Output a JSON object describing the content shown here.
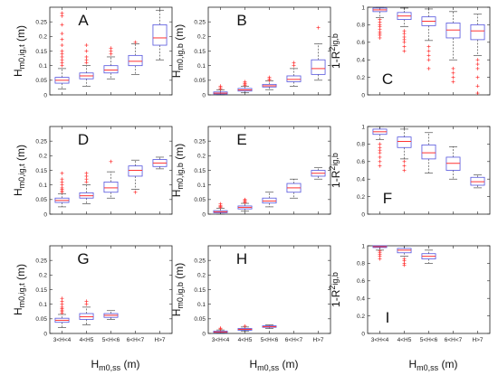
{
  "figure": {
    "x_axis_label": "H_m0,ss (m)",
    "colors": {
      "box": "#5555dd",
      "median": "#ff3333",
      "whisker": "#333333",
      "outlier": "#ff3333",
      "axes": "#222222"
    }
  },
  "chart_data": [
    {
      "panel_label": "A",
      "type": "box",
      "ylabel": "H_m0,ig,t (m)",
      "ylim": [
        0,
        0.3
      ],
      "yticks": [
        0,
        0.05,
        0.1,
        0.15,
        0.2,
        0.25
      ],
      "categories": [
        "3<H<4",
        "4<H5",
        "5<H<6",
        "6<H<7",
        "H>7"
      ],
      "show_xticklabels": false,
      "boxes": [
        {
          "whislo": 0.02,
          "q1": 0.04,
          "med": 0.05,
          "q3": 0.06,
          "whishi": 0.09,
          "fliers": [
            0.1,
            0.11,
            0.12,
            0.13,
            0.14,
            0.15,
            0.17,
            0.19,
            0.21,
            0.24,
            0.27,
            0.28
          ]
        },
        {
          "whislo": 0.03,
          "q1": 0.055,
          "med": 0.065,
          "q3": 0.075,
          "whishi": 0.1,
          "fliers": [
            0.11,
            0.12,
            0.13,
            0.15,
            0.17
          ]
        },
        {
          "whislo": 0.055,
          "q1": 0.075,
          "med": 0.085,
          "q3": 0.1,
          "whishi": 0.13,
          "fliers": [
            0.14,
            0.15,
            0.16
          ]
        },
        {
          "whislo": 0.07,
          "q1": 0.1,
          "med": 0.115,
          "q3": 0.135,
          "whishi": 0.175,
          "fliers": [
            0.18
          ]
        },
        {
          "whislo": 0.12,
          "q1": 0.17,
          "med": 0.195,
          "q3": 0.24,
          "whishi": 0.29,
          "fliers": []
        }
      ]
    },
    {
      "panel_label": "B",
      "type": "box",
      "ylabel": "H_m0,ig,b (m)",
      "ylim": [
        0,
        0.3
      ],
      "yticks": [
        0,
        0.05,
        0.1,
        0.15,
        0.2,
        0.25
      ],
      "categories": [
        "3<H<4",
        "4<H5",
        "5<H<6",
        "6<H<7",
        "H>7"
      ],
      "show_xticklabels": false,
      "boxes": [
        {
          "whislo": 0.0,
          "q1": 0.003,
          "med": 0.006,
          "q3": 0.01,
          "whishi": 0.017,
          "fliers": [
            0.02,
            0.025,
            0.03
          ]
        },
        {
          "whislo": 0.007,
          "q1": 0.013,
          "med": 0.017,
          "q3": 0.022,
          "whishi": 0.03,
          "fliers": [
            0.033,
            0.037,
            0.04,
            0.045
          ]
        },
        {
          "whislo": 0.018,
          "q1": 0.027,
          "med": 0.031,
          "q3": 0.036,
          "whishi": 0.048,
          "fliers": [
            0.05,
            0.055,
            0.06
          ]
        },
        {
          "whislo": 0.03,
          "q1": 0.045,
          "med": 0.053,
          "q3": 0.065,
          "whishi": 0.09,
          "fliers": [
            0.1,
            0.11
          ]
        },
        {
          "whislo": 0.05,
          "q1": 0.07,
          "med": 0.09,
          "q3": 0.12,
          "whishi": 0.175,
          "fliers": [
            0.23
          ]
        }
      ]
    },
    {
      "panel_label": "C",
      "type": "box",
      "ylabel": "1-R^2_ig,b",
      "ylim": [
        0,
        1
      ],
      "yticks": [
        0,
        0.2,
        0.4,
        0.6,
        0.8,
        1
      ],
      "categories": [
        "3<H<4",
        "4<H5",
        "5<H<6",
        "6<H<7",
        "H>7"
      ],
      "show_xticklabels": false,
      "boxes": [
        {
          "whislo": 0.88,
          "q1": 0.95,
          "med": 0.97,
          "q3": 0.99,
          "whishi": 1.0,
          "fliers": [
            0.65,
            0.68,
            0.7,
            0.72,
            0.75,
            0.78,
            0.8,
            0.83,
            0.86
          ]
        },
        {
          "whislo": 0.78,
          "q1": 0.86,
          "med": 0.9,
          "q3": 0.94,
          "whishi": 0.99,
          "fliers": [
            0.5,
            0.55,
            0.6,
            0.63,
            0.66,
            0.7,
            0.73
          ]
        },
        {
          "whislo": 0.62,
          "q1": 0.79,
          "med": 0.84,
          "q3": 0.89,
          "whishi": 0.98,
          "fliers": [
            0.3,
            0.4,
            0.45,
            0.5,
            0.55
          ]
        },
        {
          "whislo": 0.4,
          "q1": 0.65,
          "med": 0.74,
          "q3": 0.82,
          "whishi": 0.95,
          "fliers": [
            0.15,
            0.2,
            0.25,
            0.3
          ]
        },
        {
          "whislo": 0.45,
          "q1": 0.63,
          "med": 0.73,
          "q3": 0.8,
          "whishi": 0.92,
          "fliers": [
            0.02,
            0.1,
            0.2,
            0.3,
            0.35,
            0.4
          ]
        }
      ]
    },
    {
      "panel_label": "D",
      "type": "box",
      "ylabel": "H_m0,ig,t (m)",
      "ylim": [
        0,
        0.3
      ],
      "yticks": [
        0,
        0.05,
        0.1,
        0.15,
        0.2,
        0.25
      ],
      "categories": [
        "3<H<4",
        "4<H5",
        "5<H<6",
        "6<H<7",
        "H>7"
      ],
      "show_xticklabels": false,
      "boxes": [
        {
          "whislo": 0.025,
          "q1": 0.04,
          "med": 0.047,
          "q3": 0.055,
          "whishi": 0.07,
          "fliers": [
            0.075,
            0.08,
            0.085,
            0.09,
            0.1,
            0.11,
            0.12,
            0.14
          ]
        },
        {
          "whislo": 0.035,
          "q1": 0.055,
          "med": 0.063,
          "q3": 0.073,
          "whishi": 0.1,
          "fliers": [
            0.11,
            0.12,
            0.13,
            0.14
          ]
        },
        {
          "whislo": 0.055,
          "q1": 0.075,
          "med": 0.09,
          "q3": 0.11,
          "whishi": 0.145,
          "fliers": [
            0.18
          ]
        },
        {
          "whislo": 0.085,
          "q1": 0.13,
          "med": 0.15,
          "q3": 0.165,
          "whishi": 0.185,
          "fliers": [
            0.075
          ]
        },
        {
          "whislo": 0.155,
          "q1": 0.163,
          "med": 0.175,
          "q3": 0.187,
          "whishi": 0.195,
          "fliers": []
        }
      ]
    },
    {
      "panel_label": "E",
      "type": "box",
      "ylabel": "H_m0,ig,b (m)",
      "ylim": [
        0,
        0.3
      ],
      "yticks": [
        0,
        0.05,
        0.1,
        0.15,
        0.2,
        0.25
      ],
      "categories": [
        "3<H<4",
        "4<H5",
        "5<H<6",
        "6<H<7",
        "H>7"
      ],
      "show_xticklabels": false,
      "boxes": [
        {
          "whislo": 0.0,
          "q1": 0.005,
          "med": 0.008,
          "q3": 0.012,
          "whishi": 0.02,
          "fliers": [
            0.023,
            0.026,
            0.03,
            0.035
          ]
        },
        {
          "whislo": 0.01,
          "q1": 0.018,
          "med": 0.023,
          "q3": 0.028,
          "whishi": 0.037,
          "fliers": [
            0.04,
            0.043,
            0.047,
            0.05
          ]
        },
        {
          "whislo": 0.025,
          "q1": 0.038,
          "med": 0.045,
          "q3": 0.055,
          "whishi": 0.075,
          "fliers": []
        },
        {
          "whislo": 0.055,
          "q1": 0.075,
          "med": 0.09,
          "q3": 0.105,
          "whishi": 0.12,
          "fliers": []
        },
        {
          "whislo": 0.12,
          "q1": 0.13,
          "med": 0.14,
          "q3": 0.15,
          "whishi": 0.16,
          "fliers": []
        }
      ]
    },
    {
      "panel_label": "F",
      "type": "box",
      "ylabel": "1-R^2_ig,b",
      "ylim": [
        0,
        1
      ],
      "yticks": [
        0,
        0.2,
        0.4,
        0.6,
        0.8,
        1
      ],
      "categories": [
        "3<H<4",
        "4<H5",
        "5<H<6",
        "6<H<7",
        "H>7"
      ],
      "show_xticklabels": false,
      "boxes": [
        {
          "whislo": 0.85,
          "q1": 0.91,
          "med": 0.94,
          "q3": 0.97,
          "whishi": 1.0,
          "fliers": [
            0.55,
            0.6,
            0.65,
            0.7,
            0.73,
            0.76,
            0.8
          ]
        },
        {
          "whislo": 0.63,
          "q1": 0.76,
          "med": 0.83,
          "q3": 0.88,
          "whishi": 0.97,
          "fliers": [
            0.5,
            0.55,
            0.6
          ]
        },
        {
          "whislo": 0.47,
          "q1": 0.63,
          "med": 0.7,
          "q3": 0.79,
          "whishi": 0.93,
          "fliers": []
        },
        {
          "whislo": 0.4,
          "q1": 0.5,
          "med": 0.58,
          "q3": 0.65,
          "whishi": 0.77,
          "fliers": []
        },
        {
          "whislo": 0.3,
          "q1": 0.33,
          "med": 0.37,
          "q3": 0.42,
          "whishi": 0.45,
          "fliers": []
        }
      ]
    },
    {
      "panel_label": "G",
      "type": "box",
      "ylabel": "H_m0,ig,t (m)",
      "ylim": [
        0,
        0.3
      ],
      "yticks": [
        0,
        0.05,
        0.1,
        0.15,
        0.2,
        0.25
      ],
      "categories": [
        "3<H<4",
        "4<H5",
        "5<H<6",
        "6<H<7",
        "H>7"
      ],
      "show_xticklabels": true,
      "boxes": [
        {
          "whislo": 0.02,
          "q1": 0.038,
          "med": 0.045,
          "q3": 0.052,
          "whishi": 0.065,
          "fliers": [
            0.07,
            0.075,
            0.08,
            0.085,
            0.09,
            0.1,
            0.11,
            0.12
          ]
        },
        {
          "whislo": 0.03,
          "q1": 0.048,
          "med": 0.057,
          "q3": 0.068,
          "whishi": 0.09,
          "fliers": [
            0.1,
            0.11
          ]
        },
        {
          "whislo": 0.048,
          "q1": 0.055,
          "med": 0.062,
          "q3": 0.068,
          "whishi": 0.078,
          "fliers": []
        },
        null,
        null
      ]
    },
    {
      "panel_label": "H",
      "type": "box",
      "ylabel": "H_m0,ig,b (m)",
      "ylim": [
        0,
        0.3
      ],
      "yticks": [
        0,
        0.05,
        0.1,
        0.15,
        0.2,
        0.25
      ],
      "categories": [
        "3<H<4",
        "4<H5",
        "5<H<6",
        "6<H<7",
        "H>7"
      ],
      "show_xticklabels": true,
      "boxes": [
        {
          "whislo": 0.0,
          "q1": 0.003,
          "med": 0.005,
          "q3": 0.008,
          "whishi": 0.012,
          "fliers": [
            0.015,
            0.018
          ]
        },
        {
          "whislo": 0.007,
          "q1": 0.011,
          "med": 0.014,
          "q3": 0.017,
          "whishi": 0.022,
          "fliers": [
            0.025
          ]
        },
        {
          "whislo": 0.017,
          "q1": 0.021,
          "med": 0.023,
          "q3": 0.026,
          "whishi": 0.029,
          "fliers": []
        },
        null,
        null
      ]
    },
    {
      "panel_label": "I",
      "type": "box",
      "ylabel": "1-R^2_ig,b",
      "ylim": [
        0,
        1
      ],
      "yticks": [
        0,
        0.2,
        0.4,
        0.6,
        0.8,
        1
      ],
      "categories": [
        "3<H<4",
        "4<H5",
        "5<H<6",
        "6<H<7",
        "H>7"
      ],
      "show_xticklabels": true,
      "boxes": [
        {
          "whislo": 0.95,
          "q1": 0.98,
          "med": 0.99,
          "q3": 1.0,
          "whishi": 1.0,
          "fliers": [
            0.85,
            0.88,
            0.9,
            0.92,
            0.94
          ]
        },
        {
          "whislo": 0.88,
          "q1": 0.92,
          "med": 0.95,
          "q3": 0.97,
          "whishi": 1.0,
          "fliers": [
            0.78,
            0.8,
            0.83,
            0.85
          ]
        },
        {
          "whislo": 0.8,
          "q1": 0.85,
          "med": 0.88,
          "q3": 0.91,
          "whishi": 0.95,
          "fliers": []
        },
        null,
        null
      ]
    }
  ]
}
